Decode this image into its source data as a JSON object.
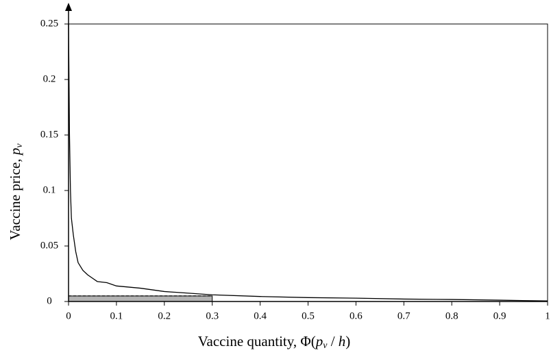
{
  "chart_data": {
    "type": "line",
    "xlabel": [
      "Vaccine quantity,  Φ(",
      "p",
      "v",
      " / ",
      "h",
      ")"
    ],
    "ylabel": [
      "Vaccine price, ",
      "p",
      "v"
    ],
    "x": [
      0,
      0.002,
      0.004,
      0.006,
      0.01,
      0.015,
      0.02,
      0.03,
      0.04,
      0.05,
      0.06,
      0.08,
      0.1,
      0.15,
      0.2,
      0.3,
      0.4,
      0.5,
      0.6,
      0.7,
      0.8,
      0.9,
      1
    ],
    "series": [
      {
        "color": "#000000",
        "values": [
          0.25,
          0.15,
          0.1,
          0.075,
          0.06,
          0.045,
          0.035,
          0.028,
          0.024,
          0.021,
          0.018,
          0.017,
          0.014,
          0.012,
          0.009,
          0.006,
          0.0045,
          0.0035,
          0.003,
          0.0022,
          0.0018,
          0.0012,
          0.0005
        ]
      }
    ],
    "shaded_region": {
      "x": [
        0,
        0.3
      ],
      "y": [
        0,
        0.005
      ],
      "color": "#b3b3b3"
    },
    "dashed_line": {
      "x": [
        0,
        0.3
      ],
      "y": 0.005
    },
    "xlim": [
      0,
      1
    ],
    "ylim": [
      0,
      0.25
    ],
    "xticks": [
      0,
      0.1,
      0.2,
      0.3,
      0.4,
      0.5,
      0.6,
      0.7,
      0.8,
      0.9,
      1
    ],
    "yticks": [
      0,
      0.05,
      0.1,
      0.15,
      0.2,
      0.25
    ]
  }
}
